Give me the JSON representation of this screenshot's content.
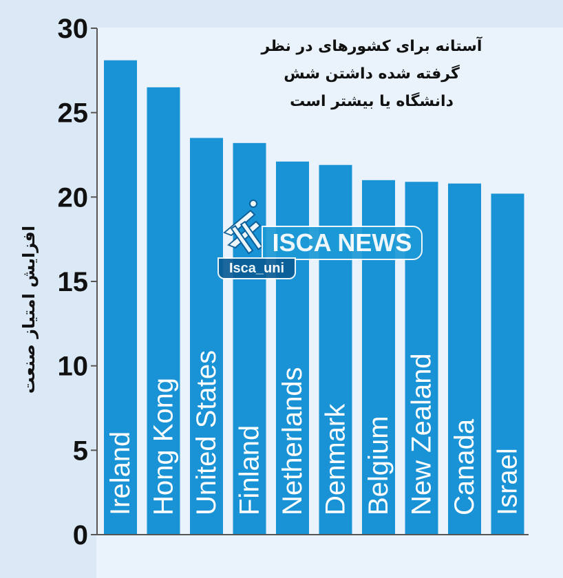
{
  "title_lines": [
    "آستانه برای کشورهای در نظر",
    "گرفته شده داشتن شش",
    "دانشگاه یا بیشتر است"
  ],
  "y_axis_label": "افزایش امتیاز صنعت",
  "watermark": {
    "brand": "ISCA NEWS",
    "handle": "Isca_uni"
  },
  "colors": {
    "bar": "#1a93d6",
    "axis": "#555555",
    "tick_text": "#111111"
  },
  "chart_data": {
    "type": "bar",
    "orientation": "vertical",
    "categories": [
      "Ireland",
      "Hong Kong",
      "United States",
      "Finland",
      "Netherlands",
      "Denmark",
      "Belgium",
      "New Zealand",
      "Canada",
      "Israel"
    ],
    "values": [
      28.1,
      26.5,
      23.5,
      23.2,
      22.1,
      21.9,
      21.0,
      20.9,
      20.8,
      20.2
    ],
    "ylim": [
      0,
      30
    ],
    "yticks": [
      "0",
      "5",
      "10",
      "15",
      "20",
      "25",
      "30"
    ],
    "category_labels_inside_bars": true,
    "grid": false,
    "legend": "none"
  }
}
